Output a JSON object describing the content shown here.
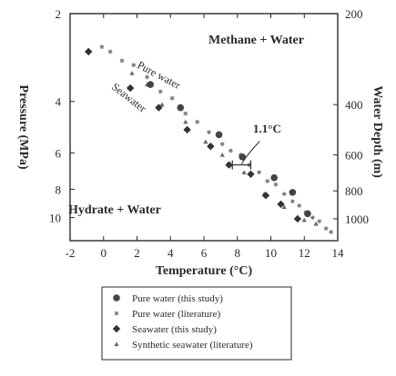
{
  "chart_data": {
    "type": "scatter",
    "xlabel": "Temperature (°C)",
    "ylabel": "Pressure (MPa)",
    "y2label": "Water Depth (m)",
    "xlim": [
      -2,
      14
    ],
    "ylim": [
      2,
      12
    ],
    "y_scale": "log",
    "x_ticks": [
      -2,
      0,
      2,
      4,
      6,
      8,
      10,
      12,
      14
    ],
    "y_ticks": [
      2,
      4,
      6,
      8,
      10
    ],
    "y2_ticks": [
      {
        "label": "200",
        "pressure": 2
      },
      {
        "label": "400",
        "pressure": 4.1
      },
      {
        "label": "600",
        "pressure": 6.1
      },
      {
        "label": "800",
        "pressure": 8.1
      },
      {
        "label": "1000",
        "pressure": 10.1
      }
    ],
    "grid": false,
    "legend_placement": "bottom",
    "region_labels": {
      "upper": "Methane + Water",
      "lower": "Hydrate + Water"
    },
    "curve_labels": {
      "pure": "Pure water",
      "sea": "Seawater"
    },
    "annotation": {
      "text": "1.1°C",
      "x1": 7.7,
      "x2": 8.8,
      "y": 6.6
    },
    "series": [
      {
        "name": "Pure water (this study)",
        "marker": "circle",
        "points": [
          [
            2.8,
            3.5
          ],
          [
            4.6,
            4.2
          ],
          [
            6.9,
            5.2
          ],
          [
            8.3,
            6.2
          ],
          [
            10.2,
            7.3
          ],
          [
            11.3,
            8.2
          ],
          [
            12.2,
            9.7
          ]
        ]
      },
      {
        "name": "Pure water (literature)",
        "marker": "star",
        "points": [
          [
            -0.1,
            2.6
          ],
          [
            0.4,
            2.7
          ],
          [
            1.1,
            2.9
          ],
          [
            1.8,
            3.0
          ],
          [
            2.6,
            3.3
          ],
          [
            3.4,
            3.7
          ],
          [
            4.1,
            3.9
          ],
          [
            4.9,
            4.4
          ],
          [
            5.6,
            4.7
          ],
          [
            6.3,
            5.1
          ],
          [
            7.1,
            5.6
          ],
          [
            7.6,
            5.9
          ],
          [
            8.2,
            6.1
          ],
          [
            8.7,
            6.6
          ],
          [
            9.3,
            7.0
          ],
          [
            9.8,
            7.5
          ],
          [
            10.3,
            7.7
          ],
          [
            10.8,
            8.3
          ],
          [
            11.3,
            8.8
          ],
          [
            11.7,
            9.1
          ],
          [
            12.1,
            9.6
          ],
          [
            12.5,
            10.0
          ],
          [
            12.9,
            10.3
          ],
          [
            13.3,
            10.9
          ],
          [
            13.6,
            11.2
          ]
        ]
      },
      {
        "name": "Seawater (this study)",
        "marker": "diamond",
        "points": [
          [
            -0.9,
            2.7
          ],
          [
            1.6,
            3.6
          ],
          [
            3.3,
            4.2
          ],
          [
            5.0,
            5.0
          ],
          [
            6.4,
            5.7
          ],
          [
            7.5,
            6.6
          ],
          [
            8.8,
            7.1
          ],
          [
            9.7,
            8.4
          ],
          [
            10.6,
            9.0
          ],
          [
            11.6,
            10.1
          ]
        ]
      },
      {
        "name": "Synthetic seawater (literature)",
        "marker": "triangle",
        "points": [
          [
            1.7,
            3.2
          ],
          [
            2.6,
            3.5
          ],
          [
            3.5,
            4.1
          ],
          [
            4.9,
            4.7
          ],
          [
            6.1,
            5.5
          ],
          [
            7.1,
            6.1
          ],
          [
            8.4,
            7.0
          ],
          [
            9.6,
            8.3
          ],
          [
            10.8,
            9.2
          ],
          [
            12.0,
            10.2
          ],
          [
            12.7,
            10.5
          ]
        ]
      }
    ]
  }
}
